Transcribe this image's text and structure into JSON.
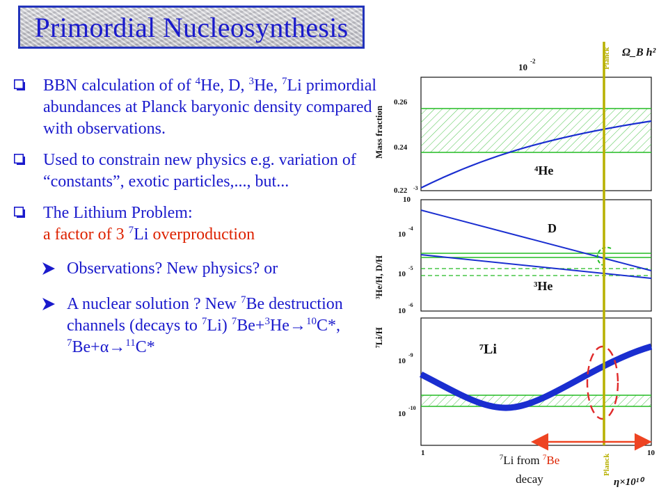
{
  "title": "Primordial Nucleosynthesis",
  "bullets": [
    {
      "t1": "BBN calculation of of ",
      "s1": "4",
      "t2": "He, D, ",
      "s2": "3",
      "t3": "He, ",
      "s3": "7",
      "t4": "Li primordial abundances at Planck baryonic density compared with observations."
    },
    {
      "text": "Used to constrain new physics e.g. variation of “constants”, exotic particles,..., but..."
    },
    {
      "line1": "The Lithium Problem:",
      "l2a": "a factor of 3 ",
      "l2s": "7",
      "l2b": "Li",
      "l2c": " overproduction"
    }
  ],
  "subbullets": [
    {
      "text": "Observations? New physics? or"
    },
    {
      "a": "A nuclear solution ?  New ",
      "s1": "7",
      "b": "Be destruction channels (decays to ",
      "s2": "7",
      "c": "Li) ",
      "s3": "7",
      "d": "Be+",
      "s4": "3",
      "e": "He→",
      "s5": "10",
      "f": "C*, ",
      "s6": "7",
      "g": "Be+α→",
      "s7": "11",
      "h": "C*"
    }
  ],
  "caption": {
    "s1": "7",
    "t1": "Li from ",
    "s2": "7",
    "t2": "Be",
    "t3": "decay"
  },
  "colors": {
    "text": "#1a1acc",
    "accent": "#dd2200",
    "curve": "#1a2ed0",
    "band": "#22bb22",
    "planck": "#b7b000"
  },
  "figure": {
    "top_axis_label": "Ω_B h²",
    "top_exp": "-2",
    "top_base": "10",
    "planck_top": "Planck",
    "planck_bottom": "Planck",
    "x_axis_label": "η×10¹⁰",
    "x_ticks": [
      "1",
      "10"
    ],
    "panel1": {
      "ylabel": "Mass fraction",
      "yticks": [
        "0.26",
        "0.24",
        "0.22"
      ],
      "exp": "-3",
      "curve_label": "⁴He"
    },
    "panel2": {
      "ylabel": "³He/H, D/H",
      "exp_top": "10",
      "yticks": [
        {
          "base": "10",
          "exp": "-4"
        },
        {
          "base": "10",
          "exp": "-5"
        },
        {
          "base": "10",
          "exp": "-6"
        }
      ],
      "label_d": "D",
      "label_he3": "³He"
    },
    "panel3": {
      "ylabel": "⁷Li/H",
      "yticks": [
        {
          "base": "10",
          "exp": "-9"
        },
        {
          "base": "10",
          "exp": "-10"
        }
      ],
      "curve_label": "⁷Li"
    }
  }
}
